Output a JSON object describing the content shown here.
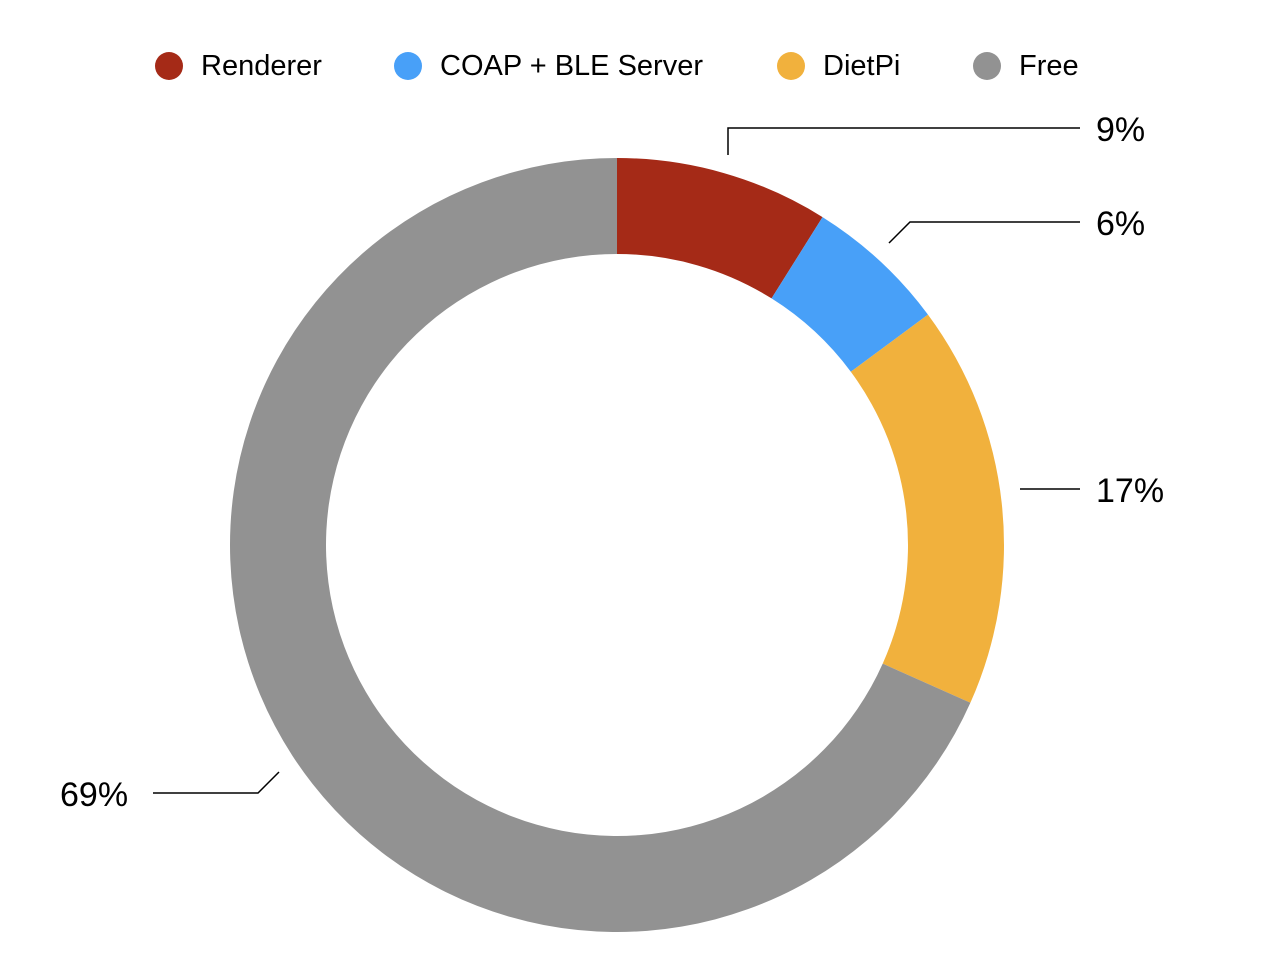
{
  "chart_data": {
    "type": "pie",
    "variant": "donut",
    "legend_position": "top",
    "slices": [
      {
        "name": "Renderer",
        "value": 9,
        "label": "9%",
        "color": "#a52a17"
      },
      {
        "name": "COAP + BLE Server",
        "value": 6,
        "label": "6%",
        "color": "#48a0f8"
      },
      {
        "name": "DietPi",
        "value": 17,
        "label": "17%",
        "color": "#f1b13d"
      },
      {
        "name": "Free",
        "value": 69,
        "label": "69%",
        "color": "#929292"
      }
    ]
  }
}
